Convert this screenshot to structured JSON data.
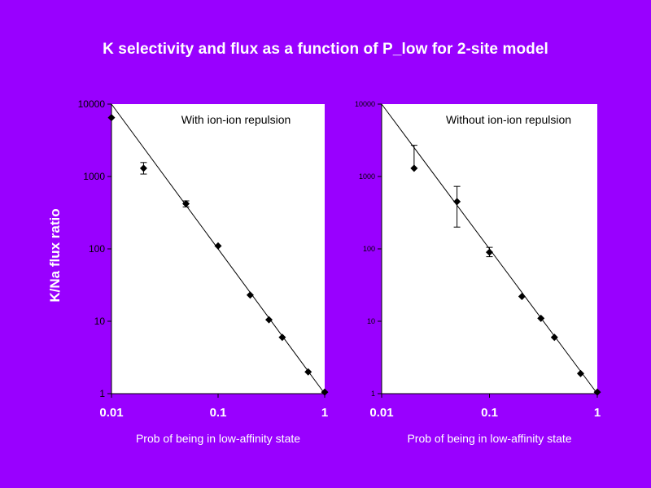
{
  "slide": {
    "title": "K selectivity and flux as a function of P_low for 2-site model",
    "ylabel": "K/Na flux ratio"
  },
  "chart_data": [
    {
      "type": "scatter",
      "title": "",
      "annotation": "With ion-ion repulsion",
      "xlabel": "Prob of being in low-affinity state",
      "xscale": "log",
      "yscale": "log",
      "xlim": [
        0.01,
        1
      ],
      "ylim": [
        1,
        10000
      ],
      "xticks": [
        0.01,
        0.1,
        1
      ],
      "xtick_labels": [
        "0.01",
        "0.1",
        "1"
      ],
      "yticks": [
        1,
        10,
        100,
        1000,
        10000
      ],
      "ytick_labels": [
        "1",
        "10",
        "100",
        "1000",
        "10000"
      ],
      "grid": false,
      "series": [
        {
          "x": [
            0.01,
            0.02,
            0.05,
            0.1,
            0.2,
            0.3,
            0.4,
            0.7,
            1.0
          ],
          "y": [
            6500,
            1300,
            420,
            110,
            23,
            10.5,
            6,
            2,
            1.05
          ],
          "yerr_low": [
            6500,
            1080,
            380,
            110,
            23,
            10.5,
            6,
            2,
            1.05
          ],
          "yerr_high": [
            6500,
            1560,
            460,
            110,
            23,
            10.5,
            6,
            2,
            1.05
          ],
          "marker": "diamond"
        }
      ],
      "fit_line": {
        "x": [
          0.01,
          1.0
        ],
        "y": [
          10000,
          1
        ]
      }
    },
    {
      "type": "scatter",
      "title": "",
      "annotation": "Without ion-ion repulsion",
      "xlabel": "Prob of being in low-affinity state",
      "xscale": "log",
      "yscale": "log",
      "xlim": [
        0.01,
        1
      ],
      "ylim": [
        1,
        10000
      ],
      "xticks": [
        0.01,
        0.1,
        1
      ],
      "xtick_labels": [
        "0.01",
        "0.1",
        "1"
      ],
      "yticks": [
        1,
        10,
        100,
        1000,
        10000
      ],
      "ytick_labels": [
        "1",
        "10",
        "100",
        "1000",
        "10000"
      ],
      "grid": false,
      "series": [
        {
          "x": [
            0.02,
            0.05,
            0.1,
            0.2,
            0.3,
            0.4,
            0.7,
            1.0
          ],
          "y": [
            1300,
            450,
            90,
            22,
            11,
            6,
            1.9,
            1.05
          ],
          "yerr_low": [
            1300,
            200,
            78,
            22,
            11,
            6,
            1.9,
            1.05
          ],
          "yerr_high": [
            2700,
            730,
            105,
            22,
            11,
            6,
            1.9,
            1.05
          ],
          "marker": "diamond"
        }
      ],
      "fit_line": {
        "x": [
          0.01,
          1.0
        ],
        "y": [
          10000,
          1
        ]
      }
    }
  ]
}
